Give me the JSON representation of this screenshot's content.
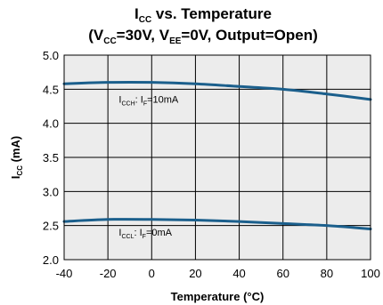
{
  "chart_data": {
    "type": "line",
    "title": {
      "line1": {
        "main": "I",
        "sub": "CC",
        "rest": " vs. Temperature"
      },
      "line2": {
        "p1": "(V",
        "s1": "CC",
        "p2": "=30V, V",
        "s2": "EE",
        "p3": "=0V, Output=Open)"
      }
    },
    "xlabel": "Temperature (°C)",
    "ylabel": {
      "main": "I",
      "sub": "CC",
      "rest": " (mA)"
    },
    "xlim": [
      -40,
      100
    ],
    "ylim": [
      2.0,
      5.0
    ],
    "xticks": [
      -40,
      -20,
      0,
      20,
      40,
      60,
      80,
      100
    ],
    "yticks": [
      "2.0",
      "2.5",
      "3.0",
      "3.5",
      "4.0",
      "4.5",
      "5.0"
    ],
    "grid": true,
    "series": [
      {
        "x": [
          -40,
          -20,
          0,
          20,
          40,
          60,
          80,
          100
        ],
        "y": [
          4.58,
          4.6,
          4.6,
          4.58,
          4.54,
          4.5,
          4.43,
          4.35
        ]
      },
      {
        "x": [
          -40,
          -20,
          0,
          20,
          40,
          60,
          80,
          100
        ],
        "y": [
          2.56,
          2.59,
          2.59,
          2.58,
          2.56,
          2.53,
          2.5,
          2.45
        ]
      }
    ],
    "annotations": [
      {
        "main": "I",
        "sub": "CCH",
        "mid": ": I",
        "sub2": "F",
        "rest": "=10mA",
        "x": -10,
        "y": 4.3
      },
      {
        "main": "I",
        "sub": "CCL",
        "mid": ": I",
        "sub2": "F",
        "rest": "=0mA",
        "x": -10,
        "y": 2.35
      }
    ],
    "colors": {
      "line": "#1b5f8c",
      "plot_bg": "#ececec",
      "grid": "#000000"
    }
  }
}
